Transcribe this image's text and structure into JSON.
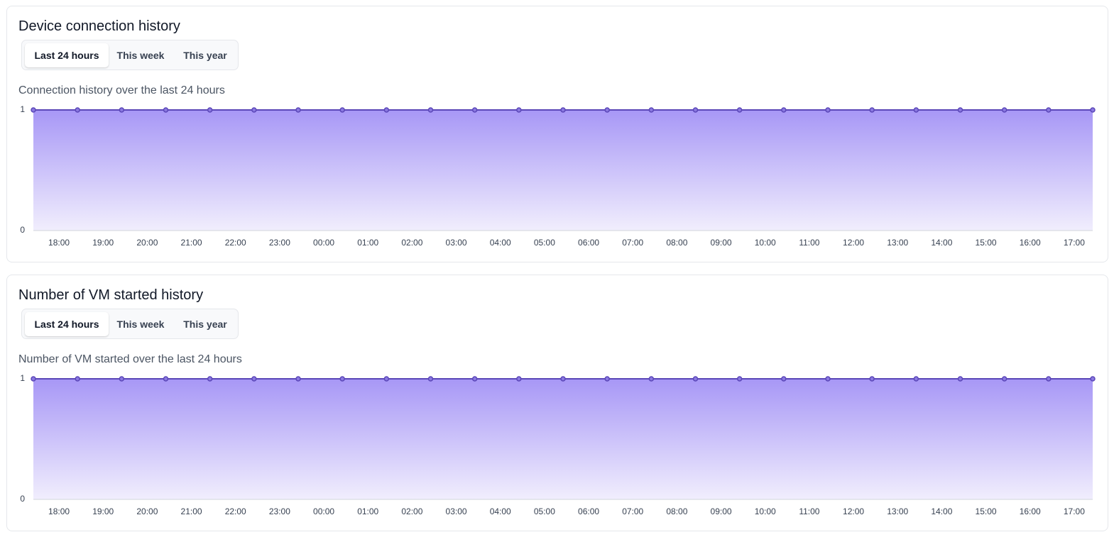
{
  "chart_data": [
    {
      "type": "area",
      "title": "Device connection history",
      "tabs": [
        "Last 24 hours",
        "This week",
        "This year"
      ],
      "active_tab": 0,
      "subtitle": "Connection history over the last 24 hours",
      "x": [
        0,
        1,
        2,
        3,
        4,
        5,
        6,
        7,
        8,
        9,
        10,
        11,
        12,
        13,
        14,
        15,
        16,
        17,
        18,
        19,
        20,
        21,
        22,
        23,
        24
      ],
      "values": [
        1,
        1,
        1,
        1,
        1,
        1,
        1,
        1,
        1,
        1,
        1,
        1,
        1,
        1,
        1,
        1,
        1,
        1,
        1,
        1,
        1,
        1,
        1,
        1,
        1
      ],
      "color": "#5b47b8",
      "fill_top": "#a797f6",
      "fill_bottom": "#f1eefd",
      "xlim": [
        0,
        24
      ],
      "ylim": [
        0,
        1
      ],
      "yticks": [
        0,
        1
      ],
      "xticks": [
        {
          "value": 0.58,
          "label": "18:00"
        },
        {
          "value": 1.58,
          "label": "19:00"
        },
        {
          "value": 2.58,
          "label": "20:00"
        },
        {
          "value": 3.58,
          "label": "21:00"
        },
        {
          "value": 4.58,
          "label": "22:00"
        },
        {
          "value": 5.58,
          "label": "23:00"
        },
        {
          "value": 6.58,
          "label": "00:00"
        },
        {
          "value": 7.58,
          "label": "01:00"
        },
        {
          "value": 8.58,
          "label": "02:00"
        },
        {
          "value": 9.58,
          "label": "03:00"
        },
        {
          "value": 10.58,
          "label": "04:00"
        },
        {
          "value": 11.58,
          "label": "05:00"
        },
        {
          "value": 12.58,
          "label": "06:00"
        },
        {
          "value": 13.58,
          "label": "07:00"
        },
        {
          "value": 14.58,
          "label": "08:00"
        },
        {
          "value": 15.58,
          "label": "09:00"
        },
        {
          "value": 16.58,
          "label": "10:00"
        },
        {
          "value": 17.58,
          "label": "11:00"
        },
        {
          "value": 18.58,
          "label": "12:00"
        },
        {
          "value": 19.58,
          "label": "13:00"
        },
        {
          "value": 20.58,
          "label": "14:00"
        },
        {
          "value": 21.58,
          "label": "15:00"
        },
        {
          "value": 22.58,
          "label": "16:00"
        },
        {
          "value": 23.58,
          "label": "17:00"
        }
      ],
      "grid": true
    },
    {
      "type": "area",
      "title": "Number of VM started history",
      "tabs": [
        "Last 24 hours",
        "This week",
        "This year"
      ],
      "active_tab": 0,
      "subtitle": "Number of VM started over the last 24 hours",
      "x": [
        0,
        1,
        2,
        3,
        4,
        5,
        6,
        7,
        8,
        9,
        10,
        11,
        12,
        13,
        14,
        15,
        16,
        17,
        18,
        19,
        20,
        21,
        22,
        23,
        24
      ],
      "values": [
        1,
        1,
        1,
        1,
        1,
        1,
        1,
        1,
        1,
        1,
        1,
        1,
        1,
        1,
        1,
        1,
        1,
        1,
        1,
        1,
        1,
        1,
        1,
        1,
        1
      ],
      "color": "#5b47b8",
      "fill_top": "#a797f6",
      "fill_bottom": "#f1eefd",
      "xlim": [
        0,
        24
      ],
      "ylim": [
        0,
        1
      ],
      "yticks": [
        0,
        1
      ],
      "xticks": [
        {
          "value": 0.58,
          "label": "18:00"
        },
        {
          "value": 1.58,
          "label": "19:00"
        },
        {
          "value": 2.58,
          "label": "20:00"
        },
        {
          "value": 3.58,
          "label": "21:00"
        },
        {
          "value": 4.58,
          "label": "22:00"
        },
        {
          "value": 5.58,
          "label": "23:00"
        },
        {
          "value": 6.58,
          "label": "00:00"
        },
        {
          "value": 7.58,
          "label": "01:00"
        },
        {
          "value": 8.58,
          "label": "02:00"
        },
        {
          "value": 9.58,
          "label": "03:00"
        },
        {
          "value": 10.58,
          "label": "04:00"
        },
        {
          "value": 11.58,
          "label": "05:00"
        },
        {
          "value": 12.58,
          "label": "06:00"
        },
        {
          "value": 13.58,
          "label": "07:00"
        },
        {
          "value": 14.58,
          "label": "08:00"
        },
        {
          "value": 15.58,
          "label": "09:00"
        },
        {
          "value": 16.58,
          "label": "10:00"
        },
        {
          "value": 17.58,
          "label": "11:00"
        },
        {
          "value": 18.58,
          "label": "12:00"
        },
        {
          "value": 19.58,
          "label": "13:00"
        },
        {
          "value": 20.58,
          "label": "14:00"
        },
        {
          "value": 21.58,
          "label": "15:00"
        },
        {
          "value": 22.58,
          "label": "16:00"
        },
        {
          "value": 23.58,
          "label": "17:00"
        }
      ],
      "grid": true
    }
  ]
}
